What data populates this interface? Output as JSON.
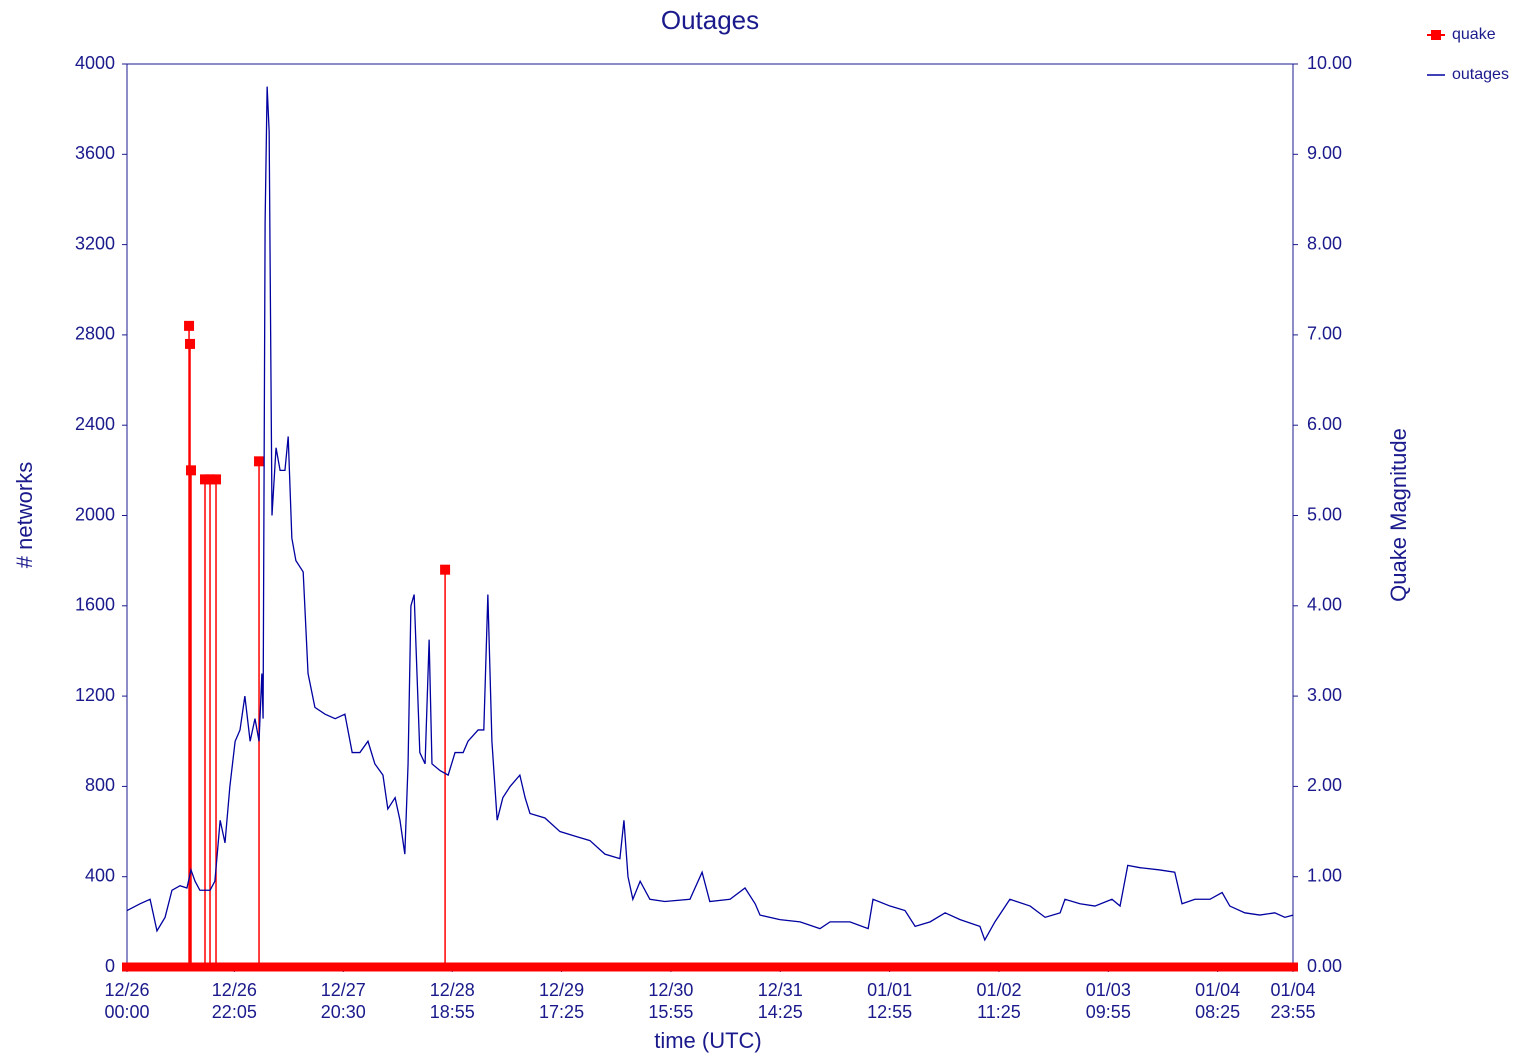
{
  "chart_data": {
    "type": "line",
    "title": "Outages",
    "x_label": "time (UTC)",
    "y_label": "# networks",
    "y2_label": "Quake Magnitude",
    "xlim": [
      0,
      14395
    ],
    "xticks": [
      {
        "value": 0,
        "label": "12/26 00:00"
      },
      {
        "value": 1325,
        "label": "12/26 22:05"
      },
      {
        "value": 2670,
        "label": "12/27 20:30"
      },
      {
        "value": 4015,
        "label": "12/28 18:55"
      },
      {
        "value": 5365,
        "label": "12/29 17:25"
      },
      {
        "value": 6715,
        "label": "12/30 15:55"
      },
      {
        "value": 8065,
        "label": "12/31 14:25"
      },
      {
        "value": 9415,
        "label": "01/01 12:55"
      },
      {
        "value": 10765,
        "label": "01/02 11:25"
      },
      {
        "value": 12115,
        "label": "01/03 09:55"
      },
      {
        "value": 13465,
        "label": "01/04 08:25"
      },
      {
        "value": 14395,
        "label": "01/04 23:55"
      }
    ],
    "ylim": [
      0,
      4000
    ],
    "yticks": [
      0,
      400,
      800,
      1200,
      1600,
      2000,
      2400,
      2800,
      3200,
      3600,
      4000
    ],
    "y2lim": [
      0,
      10
    ],
    "y2ticks": [
      {
        "value": 0,
        "label": "0.00"
      },
      {
        "value": 1,
        "label": "1.00"
      },
      {
        "value": 2,
        "label": "2.00"
      },
      {
        "value": 3,
        "label": "3.00"
      },
      {
        "value": 4,
        "label": "4.00"
      },
      {
        "value": 5,
        "label": "5.00"
      },
      {
        "value": 6,
        "label": "6.00"
      },
      {
        "value": 7,
        "label": "7.00"
      },
      {
        "value": 8,
        "label": "8.00"
      },
      {
        "value": 9,
        "label": "9.00"
      },
      {
        "value": 10,
        "label": "10.00"
      }
    ],
    "legend": "top-right",
    "series": [
      {
        "name": "quake",
        "color": "#ff0000",
        "axis": "y2",
        "x": [
          766,
          778,
          790,
          963,
          1025,
          1099,
          1630,
          3927
        ],
        "values": [
          7.1,
          6.9,
          5.5,
          5.4,
          5.4,
          5.4,
          5.6,
          4.4
        ]
      },
      {
        "name": "outages",
        "color": "#0000a0",
        "x": [
          0,
          160,
          285,
          370,
          470,
          555,
          655,
          740,
          790,
          840,
          900,
          1025,
          1085,
          1150,
          1210,
          1270,
          1335,
          1395,
          1455,
          1520,
          1580,
          1630,
          1665,
          1680,
          1705,
          1730,
          1755,
          1790,
          1840,
          1890,
          1950,
          1990,
          2035,
          2085,
          2175,
          2235,
          2320,
          2445,
          2570,
          2690,
          2780,
          2875,
          2975,
          3060,
          3160,
          3220,
          3310,
          3370,
          3430,
          3470,
          3505,
          3545,
          3580,
          3615,
          3680,
          3730,
          3765,
          3865,
          3965,
          4050,
          4150,
          4210,
          4335,
          4405,
          4455,
          4505,
          4570,
          4640,
          4730,
          4850,
          4915,
          4975,
          5160,
          5345,
          5530,
          5715,
          5900,
          6085,
          6135,
          6185,
          6245,
          6335,
          6455,
          6640,
          6950,
          7100,
          7195,
          7445,
          7630,
          7755,
          7815,
          8060,
          8310,
          8555,
          8680,
          8925,
          9150,
          9210,
          9420,
          9605,
          9730,
          9915,
          10100,
          10285,
          10530,
          10590,
          10715,
          10900,
          11150,
          11335,
          11520,
          11580,
          11765,
          11950,
          12160,
          12260,
          12355,
          12505,
          12750,
          12935,
          13025,
          13185,
          13370,
          13520,
          13615,
          13800,
          13985,
          14170,
          14295,
          14395
        ],
        "values": [
          250,
          280,
          300,
          160,
          220,
          340,
          360,
          350,
          430,
          380,
          340,
          340,
          380,
          650,
          550,
          800,
          1000,
          1050,
          1200,
          1000,
          1100,
          1000,
          1300,
          1100,
          3300,
          3900,
          3700,
          2000,
          2300,
          2200,
          2200,
          2350,
          1900,
          1800,
          1750,
          1300,
          1150,
          1120,
          1100,
          1120,
          950,
          950,
          1000,
          900,
          850,
          700,
          750,
          650,
          500,
          900,
          1600,
          1650,
          1300,
          950,
          900,
          1450,
          900,
          870,
          850,
          950,
          950,
          1000,
          1050,
          1050,
          1650,
          1000,
          650,
          750,
          800,
          850,
          750,
          680,
          660,
          600,
          580,
          560,
          500,
          480,
          650,
          400,
          300,
          380,
          300,
          290,
          300,
          420,
          290,
          300,
          350,
          280,
          230,
          210,
          200,
          170,
          200,
          200,
          170,
          300,
          270,
          250,
          180,
          200,
          240,
          210,
          180,
          120,
          200,
          300,
          270,
          220,
          240,
          300,
          280,
          270,
          300,
          270,
          450,
          440,
          430,
          420,
          280,
          300,
          300,
          330,
          270,
          240,
          230,
          240,
          220,
          230
        ]
      }
    ]
  }
}
